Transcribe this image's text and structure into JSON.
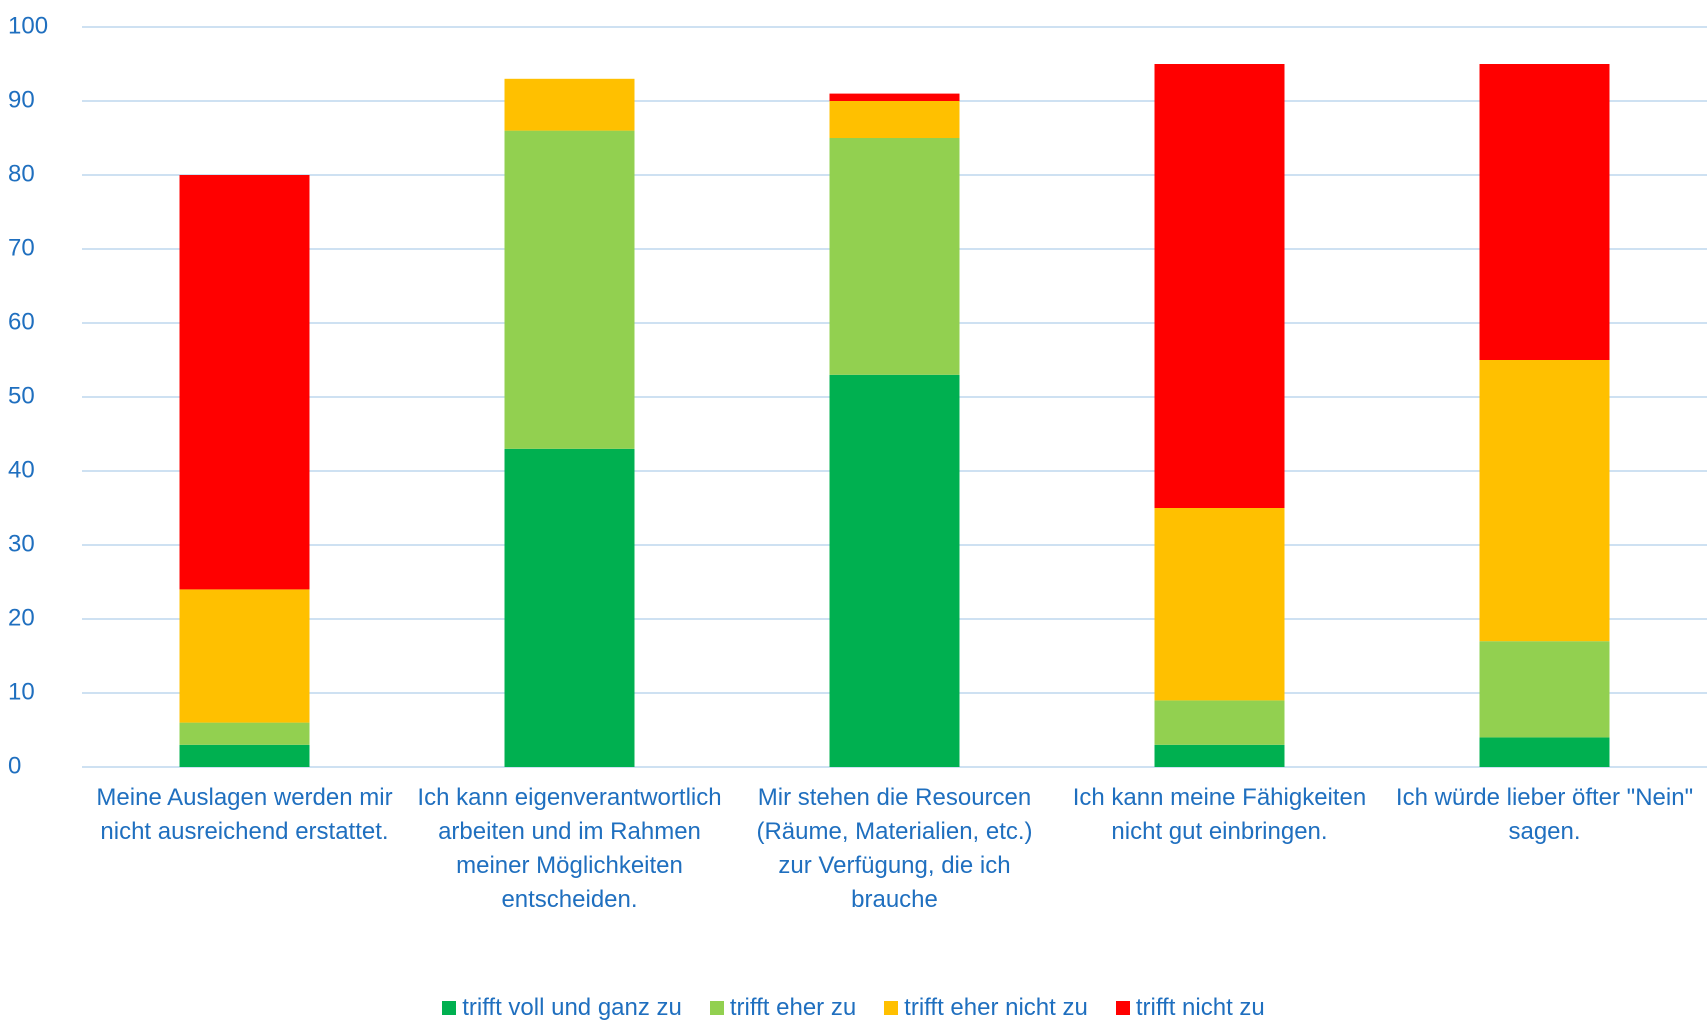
{
  "chart_data": {
    "type": "stacked_bar",
    "categories": [
      "Meine Auslagen werden mir nicht ausreichend erstattet.",
      "Ich kann eigenverantwortlich arbeiten und im Rahmen meiner Möglichkeiten entscheiden.",
      "Mir stehen die Resourcen (Räume, Materialien, etc.) zur Verfügung, die ich brauche",
      "Ich kann meine Fähigkeiten nicht gut einbringen.",
      "Ich würde lieber öfter \"Nein\" sagen."
    ],
    "series": [
      {
        "name": "trifft voll und ganz zu",
        "color": "#00b050",
        "values": [
          3,
          43,
          53,
          3,
          4
        ]
      },
      {
        "name": "trifft eher zu",
        "color": "#92d050",
        "values": [
          3,
          43,
          32,
          6,
          13
        ]
      },
      {
        "name": "trifft eher nicht zu",
        "color": "#ffc000",
        "values": [
          18,
          7,
          5,
          26,
          38
        ]
      },
      {
        "name": "trifft nicht zu",
        "color": "#ff0000",
        "values": [
          56,
          0,
          1,
          60,
          40
        ]
      }
    ],
    "ylim": [
      0,
      100
    ],
    "yticks": [
      0,
      10,
      20,
      30,
      40,
      50,
      60,
      70,
      80,
      90,
      100
    ],
    "grid": true,
    "legend": "bottom"
  }
}
